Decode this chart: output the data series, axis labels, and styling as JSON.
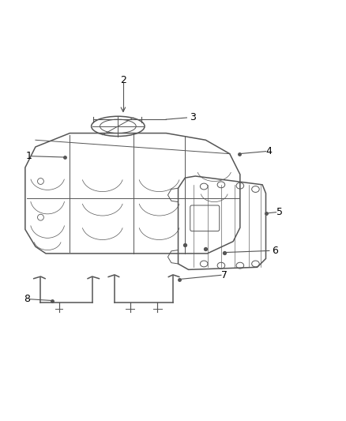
{
  "background_color": "#ffffff",
  "line_color": "#555555",
  "label_color": "#000000",
  "font_size": 9,
  "lw_main": 1.1,
  "lw_thin": 0.7,
  "lw_med": 0.85
}
